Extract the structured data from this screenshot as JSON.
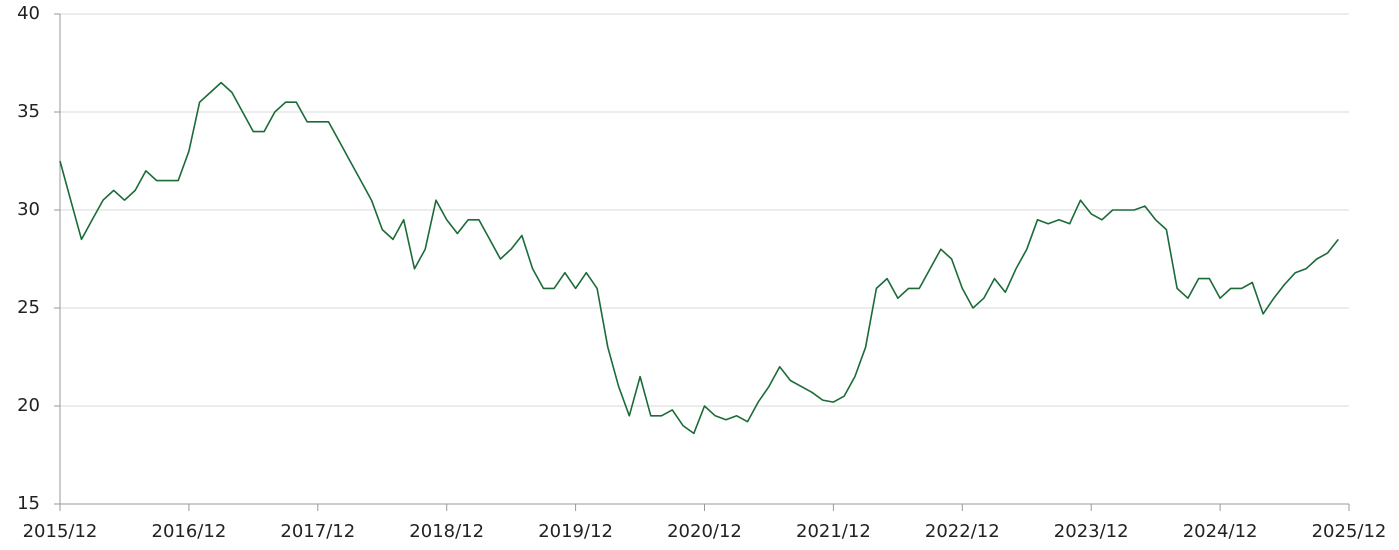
{
  "chart_data": {
    "type": "line",
    "x": [
      "2015/12",
      "2016/01",
      "2016/02",
      "2016/03",
      "2016/04",
      "2016/05",
      "2016/06",
      "2016/07",
      "2016/08",
      "2016/09",
      "2016/10",
      "2016/11",
      "2016/12",
      "2017/01",
      "2017/02",
      "2017/03",
      "2017/04",
      "2017/05",
      "2017/06",
      "2017/07",
      "2017/08",
      "2017/09",
      "2017/10",
      "2017/11",
      "2017/12",
      "2018/01",
      "2018/02",
      "2018/03",
      "2018/04",
      "2018/05",
      "2018/06",
      "2018/07",
      "2018/08",
      "2018/09",
      "2018/10",
      "2018/11",
      "2018/12",
      "2019/01",
      "2019/02",
      "2019/03",
      "2019/04",
      "2019/05",
      "2019/06",
      "2019/07",
      "2019/08",
      "2019/09",
      "2019/10",
      "2019/11",
      "2019/12",
      "2020/01",
      "2020/02",
      "2020/03",
      "2020/04",
      "2020/05",
      "2020/06",
      "2020/07",
      "2020/08",
      "2020/09",
      "2020/10",
      "2020/11",
      "2020/12",
      "2021/01",
      "2021/02",
      "2021/03",
      "2021/04",
      "2021/05",
      "2021/06",
      "2021/07",
      "2021/08",
      "2021/09",
      "2021/10",
      "2021/11",
      "2021/12",
      "2022/01",
      "2022/02",
      "2022/03",
      "2022/04",
      "2022/05",
      "2022/06",
      "2022/07",
      "2022/08",
      "2022/09",
      "2022/10",
      "2022/11",
      "2022/12",
      "2023/01",
      "2023/02",
      "2023/03",
      "2023/04",
      "2023/05",
      "2023/06",
      "2023/07",
      "2023/08",
      "2023/09",
      "2023/10",
      "2023/11",
      "2023/12",
      "2024/01",
      "2024/02",
      "2024/03",
      "2024/04",
      "2024/05",
      "2024/06",
      "2024/07",
      "2024/08",
      "2024/09",
      "2024/10",
      "2024/11",
      "2024/12",
      "2025/01",
      "2025/02",
      "2025/03",
      "2025/04",
      "2025/05",
      "2025/06",
      "2025/07",
      "2025/08",
      "2025/09",
      "2025/10",
      "2025/11"
    ],
    "series": [
      {
        "name": "value",
        "color": "#1b6b38",
        "values": [
          32.5,
          30.5,
          28.5,
          29.5,
          30.5,
          31,
          30.5,
          31,
          32,
          31.5,
          31.5,
          31.5,
          33,
          35.5,
          36,
          36.5,
          36,
          35,
          34,
          34,
          35,
          35.5,
          35.5,
          34.5,
          34.5,
          34.5,
          33.5,
          32.5,
          31.5,
          30.5,
          29,
          28.5,
          29.5,
          27,
          28,
          30.5,
          29.5,
          28.8,
          29.5,
          29.5,
          28.5,
          27.5,
          28,
          28.7,
          27,
          26,
          26,
          26.8,
          26,
          26.8,
          26,
          23,
          21,
          19.5,
          21.5,
          19.5,
          19.5,
          19.8,
          19,
          18.6,
          20,
          19.5,
          19.3,
          19.5,
          19.2,
          20.2,
          21,
          22,
          21.3,
          21,
          20.7,
          20.3,
          20.2,
          20.5,
          21.5,
          23,
          26,
          26.5,
          25.5,
          26,
          26,
          27,
          28,
          27.5,
          26,
          25,
          25.5,
          26.5,
          25.8,
          27,
          28,
          29.5,
          29.3,
          29.5,
          29.3,
          30.5,
          29.8,
          29.5,
          30,
          30,
          30,
          30.2,
          29.5,
          29,
          26,
          25.5,
          26.5,
          26.5,
          25.5,
          26,
          26,
          26.3,
          24.7,
          25.5,
          26.2,
          26.8,
          27,
          27.5,
          27.8,
          28.5
        ]
      }
    ],
    "xlim": [
      "2015/12",
      "2025/12"
    ],
    "xticks": [
      "2015/12",
      "2016/12",
      "2017/12",
      "2018/12",
      "2019/12",
      "2020/12",
      "2021/12",
      "2022/12",
      "2023/12",
      "2024/12",
      "2025/12"
    ],
    "ylim": [
      15,
      40
    ],
    "yticks": [
      15,
      20,
      25,
      30,
      35,
      40
    ],
    "grid": true
  }
}
